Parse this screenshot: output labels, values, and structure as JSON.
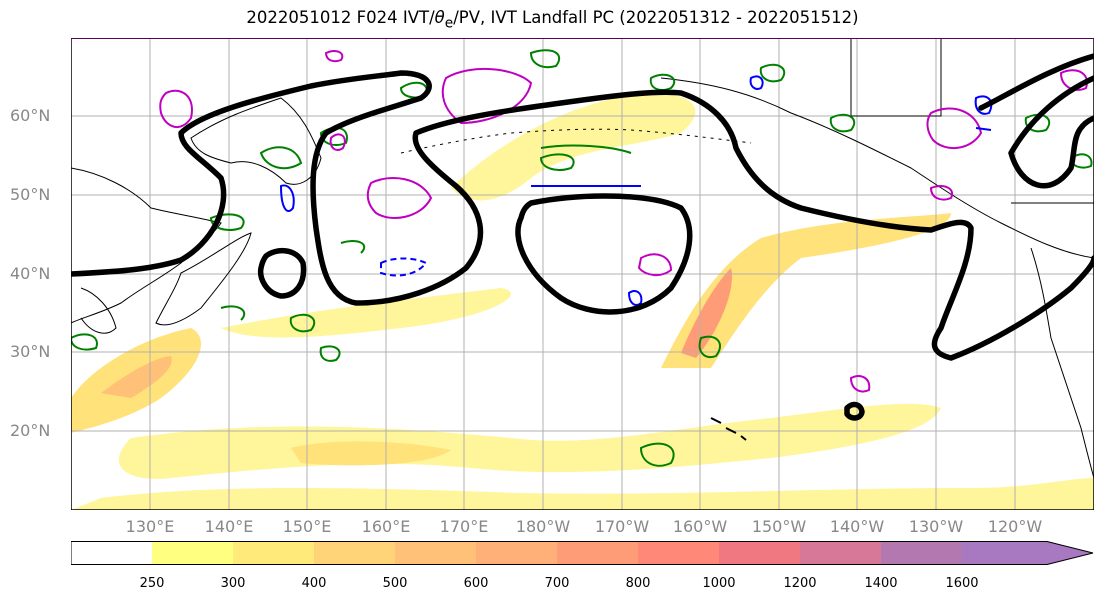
{
  "title": {
    "prefix": "2022051012 F024 IVT/",
    "theta": "θ",
    "sub": "e",
    "suffix": "/PV, IVT Landfall PC (2022051312 - 2022051512)"
  },
  "axes": {
    "lat_labels": [
      "60°N",
      "50°N",
      "40°N",
      "30°N",
      "20°N"
    ],
    "lon_labels": [
      "130°E",
      "140°E",
      "150°E",
      "160°E",
      "170°E",
      "180°W",
      "170°W",
      "160°W",
      "150°W",
      "140°W",
      "130°W",
      "120°W"
    ]
  },
  "colorbar": {
    "labels": [
      "250",
      "300",
      "400",
      "500",
      "600",
      "700",
      "800",
      "1000",
      "1200",
      "1400",
      "1600"
    ],
    "colors": [
      "#ffffff",
      "#ffff80",
      "#ffea7a",
      "#ffd478",
      "#ffc078",
      "#ffb078",
      "#ff9c78",
      "#ff8878",
      "#f07880",
      "#d87898",
      "#b478b0",
      "#a878c0"
    ]
  },
  "colors": {
    "pc_contour": "#000000",
    "theta_e": "#008000",
    "pv": "#c000c0",
    "ivt_neg": "#0000ff",
    "grid": "#b0b0b0",
    "axis_label": "#888888"
  }
}
